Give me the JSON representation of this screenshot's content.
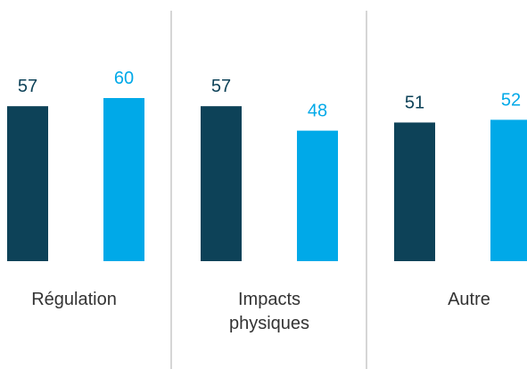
{
  "chart_data": {
    "type": "bar",
    "categories": [
      {
        "lines": [
          "Régulation"
        ]
      },
      {
        "lines": [
          "Impacts",
          "physiques"
        ]
      },
      {
        "lines": [
          "Autre"
        ]
      }
    ],
    "series": [
      {
        "values": [
          57,
          57,
          51
        ],
        "color": "#0d4258",
        "label_color": "#0d4258"
      },
      {
        "values": [
          60,
          48,
          52
        ],
        "color": "#00a9e8",
        "label_color": "#00a9e8"
      }
    ],
    "grid": false,
    "legend": "none"
  }
}
